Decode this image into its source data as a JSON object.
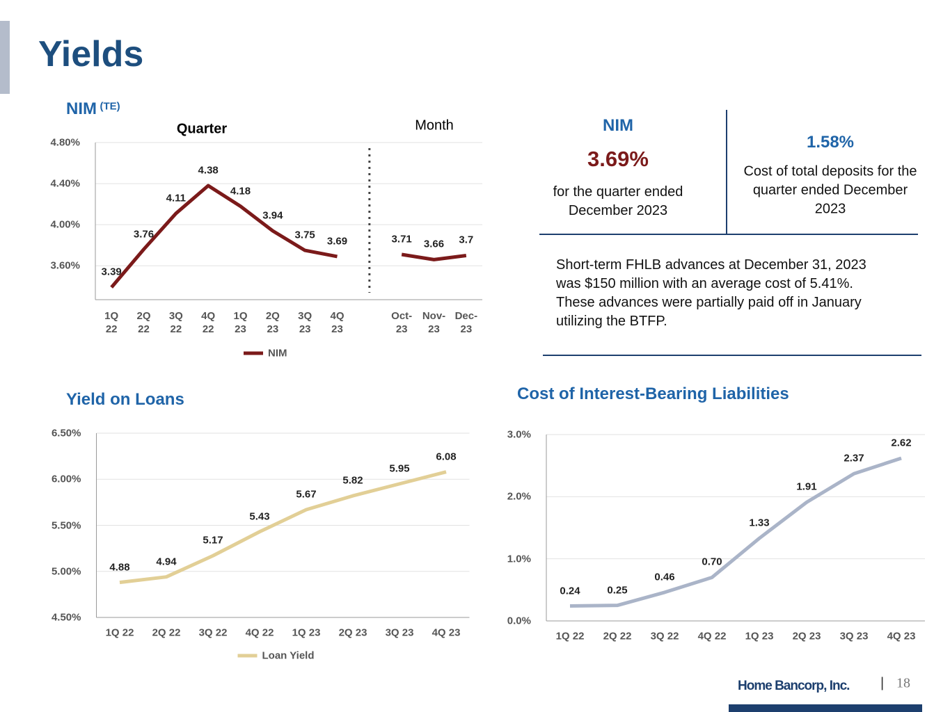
{
  "slide": {
    "title": "Yields",
    "logo": "Home Bancorp, Inc.",
    "page_number": "18"
  },
  "highlights": {
    "nim_label": "NIM",
    "nim_value": "3.69%",
    "nim_text": "for the quarter ended December 2023",
    "deposit_value": "1.58%",
    "deposit_text": "Cost of total deposits for the quarter ended December 2023",
    "note": "Short-term FHLB advances at December 31, 2023 was $150 million with an average cost of 5.41%. These advances were partially paid off in January utilizing the BTFP."
  },
  "chart_data": [
    {
      "type": "line",
      "title": "NIM",
      "title_superscript": "(TE)",
      "sections": [
        "Quarter",
        "Month"
      ],
      "categories": [
        "1Q 22",
        "2Q 22",
        "3Q 22",
        "4Q 22",
        "1Q 23",
        "2Q 23",
        "3Q 23",
        "4Q 23",
        null,
        "Oct-23",
        "Nov-23",
        "Dec-23"
      ],
      "series": [
        {
          "name": "NIM",
          "color": "#7b1a1a",
          "values": [
            3.39,
            3.76,
            4.11,
            4.38,
            4.18,
            3.94,
            3.75,
            3.69,
            null,
            3.71,
            3.66,
            3.7
          ]
        }
      ],
      "ylim": [
        3.27,
        4.8
      ],
      "yticks": [
        {
          "value": 3.6,
          "label": "3.60%"
        },
        {
          "value": 4.0,
          "label": "4.00%"
        },
        {
          "value": 4.4,
          "label": "4.40%"
        },
        {
          "value": 4.8,
          "label": "4.80%"
        }
      ],
      "grid": true,
      "legend": "bottom"
    },
    {
      "type": "line",
      "title": "Yield on Loans",
      "categories": [
        "1Q 22",
        "2Q 22",
        "3Q 22",
        "4Q 22",
        "1Q 23",
        "2Q 23",
        "3Q 23",
        "4Q 23"
      ],
      "series": [
        {
          "name": "Loan Yield",
          "color": "#e2cf96",
          "values": [
            4.88,
            4.94,
            5.17,
            5.43,
            5.67,
            5.82,
            5.95,
            6.08
          ]
        }
      ],
      "ylim": [
        4.5,
        6.5
      ],
      "yticks": [
        {
          "value": 4.5,
          "label": "4.50%"
        },
        {
          "value": 5.0,
          "label": "5.00%"
        },
        {
          "value": 5.5,
          "label": "5.50%"
        },
        {
          "value": 6.0,
          "label": "6.00%"
        },
        {
          "value": 6.5,
          "label": "6.50%"
        }
      ],
      "grid": true,
      "legend": "bottom"
    },
    {
      "type": "line",
      "title": "Cost of Interest-Bearing Liabilities",
      "categories": [
        "1Q 22",
        "2Q 22",
        "3Q 22",
        "4Q 22",
        "1Q 23",
        "2Q 23",
        "3Q 23",
        "4Q 23"
      ],
      "series": [
        {
          "color": "#aab4c8",
          "values": [
            0.24,
            0.25,
            0.46,
            0.7,
            1.33,
            1.91,
            2.37,
            2.62
          ],
          "value_labels": [
            "0.24",
            "0.25",
            "0.46",
            "0.70",
            "1.33",
            "1.91",
            "2.37",
            "2.62"
          ]
        }
      ],
      "ylim": [
        0,
        3
      ],
      "yticks": [
        {
          "value": 0,
          "label": "0.0%"
        },
        {
          "value": 1,
          "label": "1.0%"
        },
        {
          "value": 2,
          "label": "2.0%"
        },
        {
          "value": 3,
          "label": "3.0%"
        }
      ],
      "grid": true,
      "legend": "none"
    }
  ]
}
